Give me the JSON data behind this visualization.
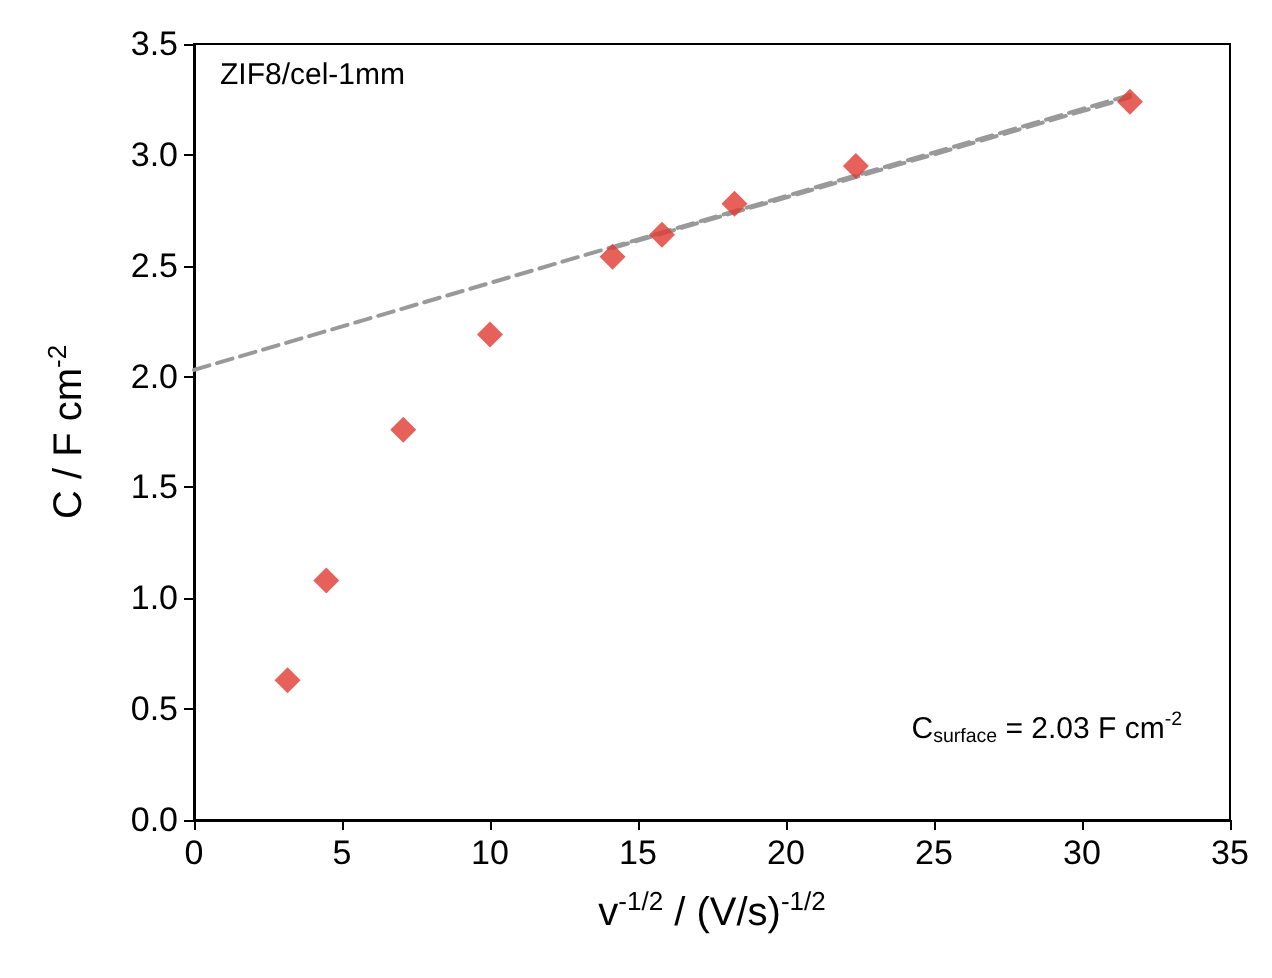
{
  "chart_data": {
    "type": "scatter",
    "xlabel": "v$^{-1/2}$ / (V/s)$^{-1/2}$",
    "ylabel": "C / F cm$^{-2}$",
    "annotations": [
      "ZIF8/cel-1mm",
      "C$_{surface}$ = 2.03 F cm$^{-2}$"
    ],
    "series": [
      {
        "type": "scatter",
        "color": "#e0392f",
        "marker": "diamond",
        "x": [
          3.16,
          4.47,
          7.07,
          10,
          14.14,
          15.81,
          18.26,
          22.36,
          31.62
        ],
        "values": [
          0.63,
          1.08,
          1.76,
          2.19,
          2.54,
          2.64,
          2.78,
          2.95,
          3.24
        ]
      },
      {
        "type": "line",
        "color": "#999999",
        "line_style": "dashed",
        "marker": "none",
        "x": [
          0,
          31.62
        ],
        "values": [
          2.03,
          3.27
        ]
      },
      {
        "type": "line",
        "color": "#999999",
        "line_style": "dashed",
        "marker": "none",
        "x": [
          14.14,
          31.62
        ],
        "values": [
          2.58,
          3.26
        ]
      }
    ],
    "xlim": [
      0,
      35
    ],
    "xticks": [
      0,
      5,
      10,
      15,
      20,
      25,
      30,
      35
    ],
    "ylim": [
      0,
      3.5
    ],
    "yticks": [
      {
        "value": 0,
        "label": "0.0"
      },
      {
        "value": 0.5,
        "label": "0.5"
      },
      {
        "value": 1,
        "label": "1.0"
      },
      {
        "value": 1.5,
        "label": "1.5"
      },
      {
        "value": 2,
        "label": "2.0"
      },
      {
        "value": 2.5,
        "label": "2.5"
      },
      {
        "value": 3,
        "label": "3.0"
      },
      {
        "value": 3.5,
        "label": "3.5"
      }
    ],
    "grid": false
  }
}
